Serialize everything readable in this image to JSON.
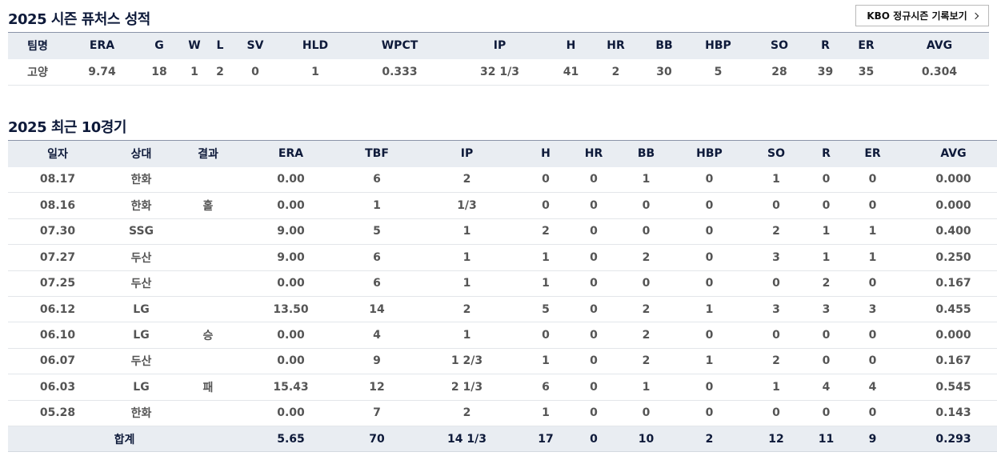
{
  "season": {
    "title": "2025 시즌 퓨처스 성적",
    "kbo_button_label": "KBO 정규시즌 기록보기",
    "headers": [
      "팀명",
      "ERA",
      "G",
      "W",
      "L",
      "SV",
      "HLD",
      "WPCT",
      "IP",
      "H",
      "HR",
      "BB",
      "HBP",
      "SO",
      "R",
      "ER",
      "AVG"
    ],
    "row": [
      "고양",
      "9.74",
      "18",
      "1",
      "2",
      "0",
      "1",
      "0.333",
      "32 1/3",
      "41",
      "2",
      "30",
      "5",
      "28",
      "39",
      "35",
      "0.304"
    ]
  },
  "recent": {
    "title": "2025 최근 10경기",
    "headers": [
      "일자",
      "상대",
      "결과",
      "ERA",
      "TBF",
      "IP",
      "H",
      "HR",
      "BB",
      "HBP",
      "SO",
      "R",
      "ER",
      "AVG"
    ],
    "rows": [
      [
        "08.17",
        "한화",
        "",
        "0.00",
        "6",
        "2",
        "0",
        "0",
        "1",
        "0",
        "1",
        "0",
        "0",
        "0.000"
      ],
      [
        "08.16",
        "한화",
        "홀",
        "0.00",
        "1",
        "1/3",
        "0",
        "0",
        "0",
        "0",
        "0",
        "0",
        "0",
        "0.000"
      ],
      [
        "07.30",
        "SSG",
        "",
        "9.00",
        "5",
        "1",
        "2",
        "0",
        "0",
        "0",
        "2",
        "1",
        "1",
        "0.400"
      ],
      [
        "07.27",
        "두산",
        "",
        "9.00",
        "6",
        "1",
        "1",
        "0",
        "2",
        "0",
        "3",
        "1",
        "1",
        "0.250"
      ],
      [
        "07.25",
        "두산",
        "",
        "0.00",
        "6",
        "1",
        "1",
        "0",
        "0",
        "0",
        "0",
        "2",
        "0",
        "0.167"
      ],
      [
        "06.12",
        "LG",
        "",
        "13.50",
        "14",
        "2",
        "5",
        "0",
        "2",
        "1",
        "3",
        "3",
        "3",
        "0.455"
      ],
      [
        "06.10",
        "LG",
        "승",
        "0.00",
        "4",
        "1",
        "0",
        "0",
        "2",
        "0",
        "0",
        "0",
        "0",
        "0.000"
      ],
      [
        "06.07",
        "두산",
        "",
        "0.00",
        "9",
        "1 2/3",
        "1",
        "0",
        "2",
        "1",
        "2",
        "0",
        "0",
        "0.167"
      ],
      [
        "06.03",
        "LG",
        "패",
        "15.43",
        "12",
        "2 1/3",
        "6",
        "0",
        "1",
        "0",
        "1",
        "4",
        "4",
        "0.545"
      ],
      [
        "05.28",
        "한화",
        "",
        "0.00",
        "7",
        "2",
        "1",
        "0",
        "0",
        "0",
        "0",
        "0",
        "0",
        "0.143"
      ]
    ],
    "total": [
      "합계",
      "5.65",
      "70",
      "14 1/3",
      "17",
      "0",
      "10",
      "2",
      "12",
      "11",
      "9",
      "0.293"
    ]
  }
}
